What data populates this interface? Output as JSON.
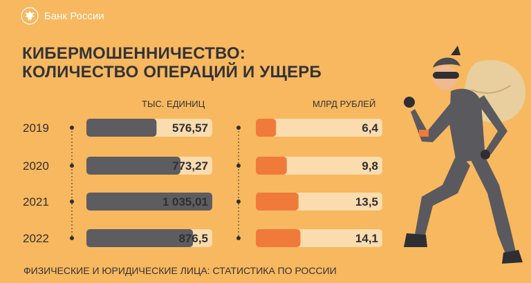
{
  "brand": {
    "name": "Банк России"
  },
  "title": {
    "line1": "КИБЕРМОШЕННИЧЕСТВО:",
    "line2": "КОЛИЧЕСТВО ОПЕРАЦИЙ И УЩЕРБ"
  },
  "footer": "ФИЗИЧЕСКИЕ И ЮРИДИЧЕСКИЕ ЛИЦА: СТАТИСТИКА ПО РОССИИ",
  "colors": {
    "background": "#f7b85f",
    "ops_fill": "#5d5c61",
    "ops_track": "#fbdcae",
    "loss_fill": "#f07a3a",
    "loss_track": "#fbdcae"
  },
  "chart_data": {
    "type": "bar",
    "orientation": "horizontal",
    "categories": [
      "2019",
      "2020",
      "2021",
      "2022"
    ],
    "series": [
      {
        "unit": "ТЫС. ЕДИНИЦ",
        "values": [
          576.57,
          773.27,
          1035.01,
          876.5
        ],
        "labels": [
          "576,57",
          "773,27",
          "1 035,01",
          "876,5"
        ],
        "max": 1035.01
      },
      {
        "unit": "МЛРД РУБЛЕЙ",
        "values": [
          6.4,
          9.8,
          13.5,
          14.1
        ],
        "labels": [
          "6,4",
          "9,8",
          "13,5",
          "14,1"
        ],
        "max": 40
      }
    ]
  }
}
